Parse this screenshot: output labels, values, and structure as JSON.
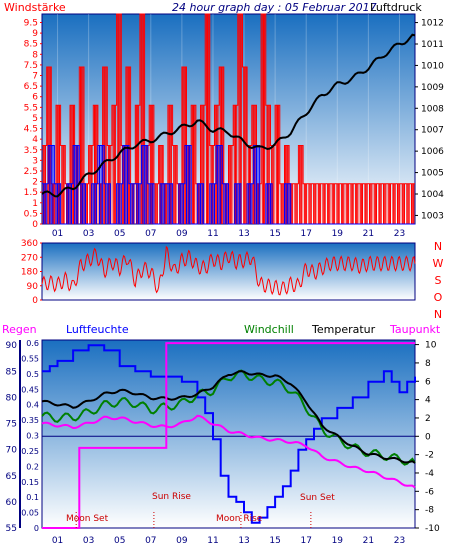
{
  "header": {
    "title": "24 hour graph day : 05 Februar 2017",
    "left_label": "Windstärke",
    "right_label": "Luftdruck"
  },
  "colors": {
    "red": "#ff0000",
    "blue": "#0000ff",
    "black": "#000000",
    "green": "#008000",
    "magenta": "#ff00ff",
    "navy": "#000080",
    "dark_red": "#cc0000",
    "bg_top": "#1a6fc0",
    "bg_bottom": "#ffffff"
  },
  "chart_data": [
    {
      "type": "line",
      "name": "wind-pressure",
      "x_ticks": [
        "01",
        "03",
        "05",
        "07",
        "09",
        "11",
        "13",
        "15",
        "17",
        "19",
        "21",
        "23"
      ],
      "y_left_ticks": [
        "0",
        "0.5",
        "1",
        "1.5",
        "2",
        "2.5",
        "3",
        "3.5",
        "4",
        "4.5",
        "5",
        "5.5",
        "6",
        "6.5",
        "7",
        "7.5",
        "8",
        "8.5",
        "9",
        "9.5"
      ],
      "y_right_ticks": [
        "1003",
        "1004",
        "1005",
        "1006",
        "1007",
        "1008",
        "1009",
        "1010",
        "1011",
        "1012"
      ],
      "ylim_left": [
        0,
        9.9
      ],
      "ylim_right": [
        1002.6,
        1012.4
      ],
      "series": [
        {
          "color": "red",
          "axis": "left",
          "style": "step",
          "x": [
            0,
            0.3,
            0.6,
            0.9,
            1.2,
            1.5,
            1.8,
            2.1,
            2.4,
            2.7,
            3.0,
            3.3,
            3.6,
            3.9,
            4.2,
            4.5,
            4.8,
            5.1,
            5.4,
            5.7,
            6.0,
            6.3,
            6.6,
            6.9,
            7.2,
            7.5,
            7.8,
            8.1,
            8.4,
            8.7,
            9.0,
            9.3,
            9.6,
            9.9,
            10.2,
            10.5,
            10.8,
            11.1,
            11.4,
            11.7,
            12.0,
            12.3,
            12.6,
            12.9,
            13.2,
            13.5,
            13.8,
            14.1,
            14.4,
            14.7,
            15.0,
            15.3,
            15.6,
            15.9,
            16.2,
            16.5,
            16.8,
            17.1,
            17.4,
            17.7,
            18.0,
            18.3,
            18.6,
            18.9,
            19.2,
            19.5,
            19.8,
            20.1,
            20.4,
            20.7,
            21.0,
            21.3,
            21.6,
            21.9,
            22.2,
            22.5,
            22.8,
            23.1,
            23.4,
            23.7,
            24.0
          ],
          "y": [
            3.7,
            7.4,
            1.9,
            5.6,
            3.7,
            1.9,
            5.6,
            3.7,
            7.4,
            1.9,
            3.7,
            5.6,
            1.9,
            7.4,
            3.7,
            5.6,
            9.9,
            3.7,
            7.4,
            1.9,
            5.6,
            9.9,
            3.7,
            5.6,
            1.9,
            3.7,
            1.9,
            5.6,
            3.7,
            1.9,
            7.4,
            3.7,
            5.6,
            1.9,
            5.6,
            9.9,
            3.7,
            5.6,
            7.4,
            1.9,
            3.7,
            5.6,
            9.9,
            7.4,
            3.7,
            5.6,
            1.9,
            9.9,
            5.6,
            3.7,
            5.6,
            1.9,
            3.7,
            1.9,
            1.9,
            3.7,
            1.9,
            1.9,
            1.9,
            1.9,
            1.9,
            1.9,
            1.9,
            1.9,
            1.9,
            1.9,
            1.9,
            1.9,
            1.9,
            1.9,
            1.9,
            1.9,
            1.9,
            1.9,
            1.9,
            1.9,
            1.9,
            1.9,
            1.9,
            1.9,
            1.9
          ]
        },
        {
          "color": "blue",
          "axis": "left",
          "style": "step",
          "x": [
            0,
            0.4,
            0.8,
            1.2,
            1.6,
            2.0,
            2.4,
            2.8,
            3.2,
            3.6,
            4.0,
            4.4,
            4.8,
            5.2,
            5.6,
            6.0,
            6.4,
            6.8,
            7.2,
            7.6,
            8.0,
            8.4,
            8.8,
            9.2,
            9.6,
            10.0,
            10.4,
            10.8,
            11.2,
            11.6,
            12.0,
            12.4,
            12.8,
            13.2,
            13.6,
            14.0,
            14.4,
            14.8,
            15.2,
            15.6,
            16.0,
            16.4,
            16.8,
            17.2,
            17.6,
            18.0,
            18.4,
            18.8,
            19.2,
            19.6,
            20.0,
            20.4,
            20.8,
            21.2,
            21.6,
            22.0,
            22.4,
            22.8,
            23.2,
            23.6,
            24.0
          ],
          "y": [
            1.9,
            3.7,
            1.9,
            0.0,
            1.9,
            3.7,
            1.9,
            0.0,
            1.9,
            3.7,
            1.9,
            0.0,
            1.9,
            3.7,
            1.9,
            1.9,
            3.7,
            1.9,
            0.0,
            1.9,
            1.9,
            0.0,
            1.9,
            3.7,
            0.0,
            1.9,
            0.0,
            1.9,
            3.7,
            1.9,
            0.0,
            1.9,
            0.0,
            1.9,
            3.7,
            0.0,
            1.9,
            0.0,
            0.0,
            1.9,
            0.0,
            0.0,
            0.0,
            0.0,
            0.0,
            0.0,
            0.0,
            0.0,
            0.0,
            0.0,
            0.0,
            0.0,
            0.0,
            0.0,
            0.0,
            0.0,
            0.0,
            0.0,
            0.0,
            0.0,
            0.0
          ]
        },
        {
          "color": "black",
          "axis": "right",
          "style": "line",
          "x": [
            0,
            1,
            2,
            3,
            4,
            5,
            6,
            7,
            8,
            9,
            10,
            11,
            12,
            13,
            14,
            15,
            16,
            17,
            18,
            19,
            20,
            21,
            22,
            23,
            24
          ],
          "y": [
            1004.0,
            1004.0,
            1004.3,
            1004.9,
            1005.4,
            1005.9,
            1006.3,
            1006.5,
            1006.8,
            1007.1,
            1007.4,
            1007.0,
            1006.9,
            1006.4,
            1006.1,
            1006.3,
            1006.9,
            1007.8,
            1008.6,
            1009.1,
            1009.4,
            1009.9,
            1010.5,
            1011.0,
            1011.4
          ]
        }
      ]
    },
    {
      "type": "line",
      "name": "wind-direction",
      "y_ticks": [
        "0",
        "90",
        "180",
        "270",
        "360"
      ],
      "right_labels": [
        "N",
        "W",
        "S",
        "O",
        "N"
      ],
      "ylim": [
        0,
        360
      ],
      "x": [
        0,
        0.5,
        1,
        1.5,
        2,
        2.5,
        3,
        3.5,
        4,
        4.5,
        5,
        5.5,
        6,
        6.5,
        7,
        7.5,
        8,
        8.5,
        9,
        9.5,
        10,
        10.5,
        11,
        11.5,
        12,
        12.5,
        13,
        13.5,
        14,
        14.5,
        15,
        15.5,
        16,
        16.5,
        17,
        17.5,
        18,
        18.5,
        19,
        19.5,
        20,
        20.5,
        21,
        21.5,
        22,
        22.5,
        23,
        23.5,
        24
      ],
      "y": [
        100,
        110,
        95,
        130,
        80,
        220,
        250,
        290,
        180,
        240,
        200,
        270,
        120,
        200,
        180,
        60,
        300,
        180,
        250,
        270,
        210,
        200,
        260,
        230,
        280,
        240,
        250,
        270,
        100,
        90,
        80,
        70,
        100,
        90,
        200,
        170,
        200,
        230,
        230,
        230,
        230,
        210,
        230,
        230,
        230,
        230,
        230,
        230,
        230
      ]
    },
    {
      "type": "line",
      "name": "humidity-temperature",
      "y_humidity_ticks": [
        "55",
        "60",
        "65",
        "70",
        "75",
        "80",
        "85",
        "90"
      ],
      "y_regen_ticks": [
        "0",
        "0.05",
        "0.1",
        "0.15",
        "0.2",
        "0.25",
        "0.3",
        "0.35",
        "0.4",
        "0.45",
        "0.5",
        "0.55",
        "0.6"
      ],
      "y_temp_ticks": [
        "-10",
        "-8",
        "-6",
        "-4",
        "-2",
        "0",
        "2",
        "4",
        "6",
        "8",
        "10"
      ],
      "ylim_humidity": [
        55,
        91
      ],
      "ylim_temp": [
        -10,
        10.5
      ],
      "ylim_regen": [
        0,
        0.61
      ],
      "series": [
        {
          "color": "blue",
          "axis": "humidity",
          "style": "step",
          "x": [
            0,
            0.5,
            1,
            2,
            3,
            4,
            5,
            6,
            7,
            8,
            9,
            10,
            10.5,
            11,
            11.5,
            12,
            12.5,
            13,
            13.5,
            14,
            14.5,
            15,
            15.5,
            16,
            16.5,
            17,
            17.5,
            18,
            19,
            20,
            21,
            22,
            22.5,
            23,
            23.5,
            24
          ],
          "y": [
            85,
            86,
            87,
            89,
            90,
            89,
            86,
            85,
            84,
            84,
            83,
            80,
            77,
            72,
            65,
            61,
            60,
            58,
            56,
            57,
            59,
            61,
            63,
            66,
            70,
            72,
            74,
            76,
            78,
            80,
            83,
            85,
            83,
            81,
            83,
            84
          ]
        },
        {
          "color": "green",
          "axis": "temp",
          "style": "line",
          "x": [
            0,
            1,
            2,
            3,
            4,
            5,
            6,
            7,
            8,
            9,
            10,
            11,
            12,
            13,
            14,
            15,
            16,
            17,
            18,
            19,
            20,
            21,
            22,
            23,
            24
          ],
          "y": [
            2.2,
            2.0,
            2.1,
            2.6,
            3.4,
            3.8,
            3.6,
            2.9,
            3.2,
            3.6,
            4.5,
            5.0,
            6.5,
            6.8,
            6.2,
            5.9,
            5.1,
            3.2,
            0.8,
            -0.3,
            -1.2,
            -1.8,
            -2.1,
            -2.5,
            -2.9
          ]
        },
        {
          "color": "black",
          "axis": "temp",
          "style": "line",
          "x": [
            0,
            1,
            2,
            3,
            4,
            5,
            6,
            7,
            8,
            9,
            10,
            11,
            12,
            13,
            14,
            15,
            16,
            17,
            18,
            19,
            20,
            21,
            22,
            23,
            24
          ],
          "y": [
            3.8,
            3.5,
            3.2,
            3.8,
            4.6,
            5.0,
            4.7,
            4.2,
            4.1,
            4.2,
            4.6,
            5.4,
            6.8,
            7.0,
            6.7,
            6.6,
            5.8,
            3.8,
            1.2,
            0.0,
            -1.1,
            -1.9,
            -2.3,
            -2.6,
            -2.9
          ]
        },
        {
          "color": "magenta",
          "axis": "temp",
          "style": "line",
          "x": [
            0,
            1,
            2,
            3,
            4,
            5,
            6,
            7,
            8,
            9,
            10,
            11,
            12,
            13,
            14,
            15,
            16,
            17,
            18,
            19,
            20,
            21,
            22,
            23,
            24
          ],
          "y": [
            1.4,
            1.2,
            1.0,
            1.4,
            2.0,
            2.0,
            1.6,
            1.2,
            1.0,
            1.4,
            2.2,
            1.4,
            0.6,
            0.2,
            -0.2,
            -0.4,
            -0.6,
            -1.0,
            -2.2,
            -2.8,
            -3.4,
            -3.8,
            -4.4,
            -5.0,
            -5.6
          ]
        },
        {
          "color": "magenta",
          "axis": "regen",
          "style": "step",
          "x": [
            0,
            2.2,
            2.4,
            7.6,
            8.0,
            24.0
          ],
          "y": [
            0,
            0,
            0.26,
            0.26,
            0.6,
            0.6
          ]
        }
      ],
      "labels": {
        "regen": "Regen",
        "humidity": "Luftfeuchte",
        "windchill": "Windchill",
        "temperature": "Temperatur",
        "dewpoint": "Taupunkt",
        "moon_set": "Moon Set",
        "sun_rise": "Sun Rise",
        "moon_rise": "Moon Rise",
        "sun_set": "Sun Set"
      }
    }
  ]
}
